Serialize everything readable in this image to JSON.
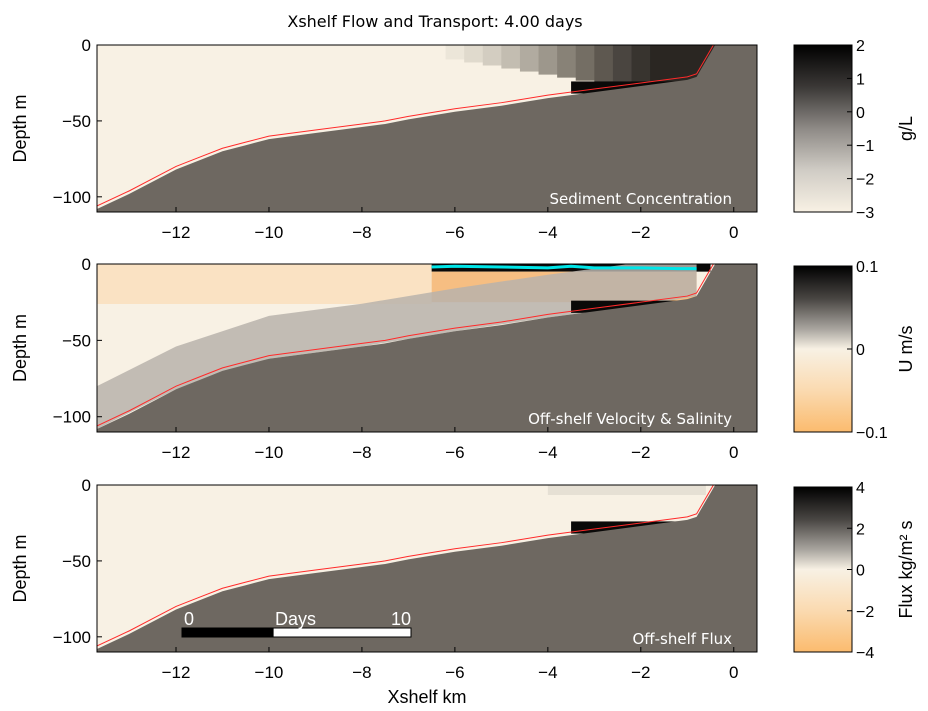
{
  "figure": {
    "title": "Xshelf Flow and Transport:  4.00 days"
  },
  "chart_data": [
    {
      "type": "heatmap",
      "panel_label": "Sediment Concentration",
      "ylabel": "Depth m",
      "xlabel": "",
      "xlim": [
        -13.7,
        0.5
      ],
      "ylim": [
        -110,
        0
      ],
      "xticks": [
        -12,
        -10,
        -8,
        -6,
        -4,
        -2,
        0
      ],
      "yticks": [
        0,
        -50,
        -100
      ],
      "colorbar": {
        "label": "g/L",
        "range": [
          -3,
          2
        ],
        "ticks": [
          2,
          1,
          0,
          -1,
          -2,
          -3
        ],
        "colormap": "gray-reversed"
      },
      "field": "log10 sediment concentration; background ~-3 offshore, rising to ~2 near coast (x > -4 km) in upper water column and near-bottom layer x -3.5 to -0.8 km"
    },
    {
      "type": "heatmap",
      "panel_label": "Off-shelf Velocity & Salinity",
      "ylabel": "Depth m",
      "xlabel": "",
      "xlim": [
        -13.7,
        0.5
      ],
      "ylim": [
        -110,
        0
      ],
      "xticks": [
        -12,
        -10,
        -8,
        -6,
        -4,
        -2,
        0
      ],
      "yticks": [
        0,
        -50,
        -100
      ],
      "colorbar": {
        "label": "U m/s",
        "range": [
          -0.1,
          0.1
        ],
        "ticks": [
          0.1,
          0,
          -0.1
        ],
        "colormap": "orange-white-gray-black"
      },
      "field": "Onshore (negative, orange) flow in upper layer, offshore (positive, dark) flow near bottom; strong offshore surface jet x -6.5 to -0.5 km; cyan salinity front contour near surface x -6.5 to -1"
    },
    {
      "type": "heatmap",
      "panel_label": "Off-shelf Flux",
      "ylabel": "Depth m",
      "xlabel": "Xshelf km",
      "xlim": [
        -13.7,
        0.5
      ],
      "ylim": [
        -110,
        0
      ],
      "xticks": [
        -12,
        -10,
        -8,
        -6,
        -4,
        -2,
        0
      ],
      "yticks": [
        0,
        -50,
        -100
      ],
      "colorbar": {
        "label": "Flux kg/m² s",
        "range": [
          -4,
          4
        ],
        "ticks": [
          4,
          2,
          0,
          -2,
          -4
        ],
        "colormap": "orange-white-gray-black"
      },
      "field": "Flux near zero offshore; strong positive flux in near-bottom layer x -3.5 to -0.8 km",
      "time_bar": {
        "start_label": "0",
        "label": "Days",
        "end_label": "10",
        "range_days": [
          0,
          10
        ],
        "elapsed_days": 4.0
      }
    }
  ],
  "colors": {
    "land": "#6e6861",
    "cream": "#f8f1e4",
    "bottom_line": "#ff2a2a",
    "salinity_front": "#00e5e8",
    "orange": "#fbc079"
  }
}
